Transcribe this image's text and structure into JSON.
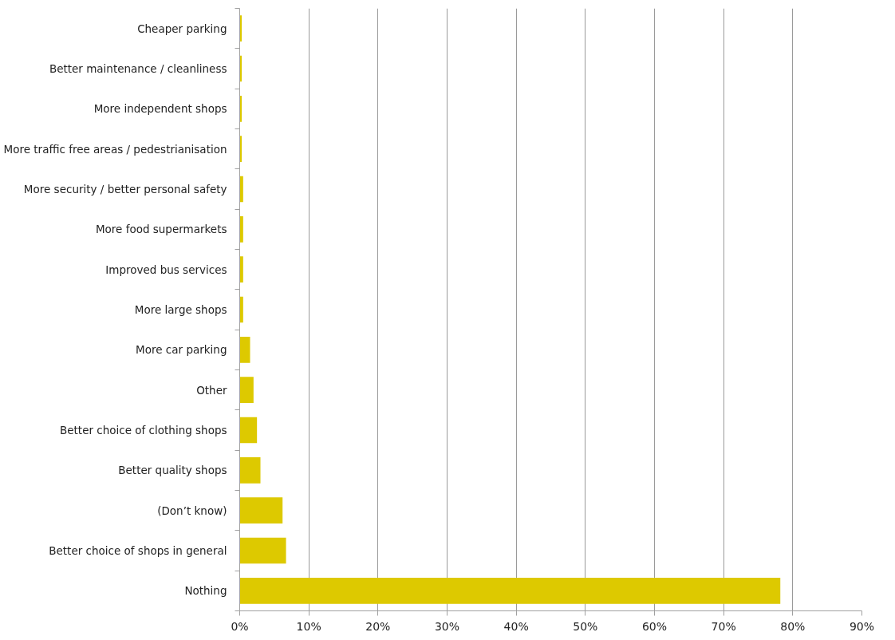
{
  "chart_data": {
    "type": "bar",
    "orientation": "horizontal",
    "categories": [
      "Cheaper parking",
      "Better maintenance / cleanliness",
      "More independent shops",
      "More traffic free areas / pedestrianisation",
      "More security / better personal safety",
      "More food supermarkets",
      "Improved bus services",
      "More large shops",
      "More car parking",
      "Other",
      "Better choice of clothing shops",
      "Better quality shops",
      "(Don’t know)",
      "Better choice of shops in general",
      "Nothing"
    ],
    "values": [
      0.3,
      0.3,
      0.3,
      0.3,
      0.5,
      0.5,
      0.5,
      0.5,
      1.5,
      2.0,
      2.5,
      3.0,
      6.2,
      6.7,
      78.2
    ],
    "color": "#ddc900",
    "xlim": [
      0,
      90
    ],
    "xticks": [
      {
        "value": 0,
        "label": "0%"
      },
      {
        "value": 10,
        "label": "10%"
      },
      {
        "value": 20,
        "label": "20%"
      },
      {
        "value": 30,
        "label": "30%"
      },
      {
        "value": 40,
        "label": "40%"
      },
      {
        "value": 50,
        "label": "50%"
      },
      {
        "value": 60,
        "label": "60%"
      },
      {
        "value": 70,
        "label": "70%"
      },
      {
        "value": 80,
        "label": "80%"
      },
      {
        "value": 90,
        "label": "90%"
      }
    ],
    "grid": "x"
  }
}
